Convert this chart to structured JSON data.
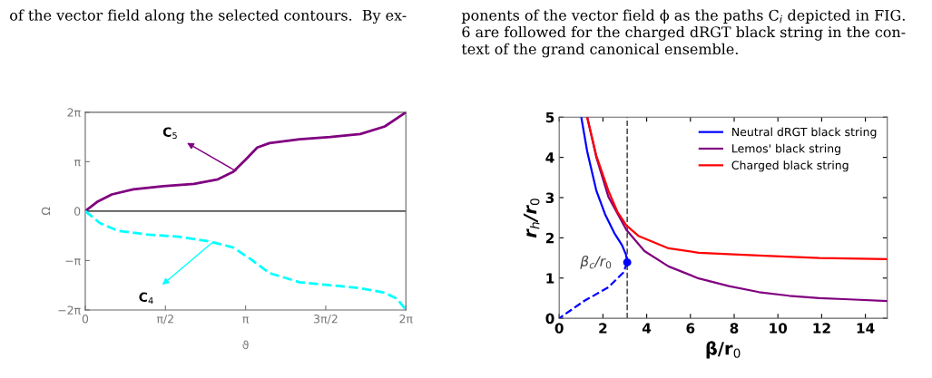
{
  "chart_data": [
    {
      "type": "line",
      "xlabel": "ϑ",
      "ylabel": "Ω",
      "annotations": [
        "of the vector field along the selected contours.  By ex-",
        {
          "text": "C$_{5}$",
          "x": 2.95,
          "y": 2.55
        },
        {
          "text": "C$_{4}$",
          "x": 2.48,
          "y": -2.02
        }
      ],
      "xlim": [
        0,
        6.2832
      ],
      "ylim": [
        -6.2832,
        6.2832
      ],
      "xticks": [
        0,
        {
          "value": 1.5708,
          "label": "π/2"
        },
        {
          "value": 3.1416,
          "label": "π"
        },
        {
          "value": 4.7124,
          "label": "3π/2"
        },
        {
          "value": 6.2832,
          "label": "2π"
        }
      ],
      "yticks": [
        {
          "value": -6.2832,
          "label": "−2π"
        },
        {
          "value": -3.1416,
          "label": "−π"
        },
        0,
        {
          "value": 3.1416,
          "label": "π"
        },
        {
          "value": 6.2832,
          "label": "2π"
        }
      ],
      "ref_lines": [
        {
          "axis": "y",
          "value": 0,
          "color": "#555555",
          "line_style": "solid"
        }
      ],
      "grid": false,
      "legend": false,
      "series": [
        {
          "color": "#800080",
          "line_style": "solid",
          "x": [
            0,
            0.23,
            0.52,
            0.94,
            1.53,
            2.13,
            2.6,
            2.9,
            3.14,
            3.37,
            3.61,
            4.2,
            4.8,
            5.39,
            5.87,
            6.2832
          ],
          "values": [
            0,
            0.58,
            1.06,
            1.38,
            1.58,
            1.73,
            2.02,
            2.5,
            3.27,
            4.04,
            4.32,
            4.57,
            4.71,
            4.9,
            5.38,
            6.28
          ]
        },
        {
          "color": "#00ffff",
          "line_style": "dashed",
          "x": [
            0,
            0.29,
            0.64,
            1.24,
            1.83,
            2.42,
            2.9,
            3.25,
            3.61,
            4.2,
            4.8,
            5.39,
            5.87,
            6.11,
            6.2832
          ],
          "values": [
            0,
            -0.77,
            -1.25,
            -1.5,
            -1.63,
            -1.92,
            -2.31,
            -3.07,
            -3.94,
            -4.52,
            -4.71,
            -4.9,
            -5.19,
            -5.57,
            -6.28
          ]
        }
      ]
    },
    {
      "type": "line",
      "xlabel": "β/r$_{0}$",
      "ylabel": "r$_{h}$/r$_{0}$",
      "annotations": [
        "ponents of the vector field ϕ as the paths C$_{i}$ depicted in FIG.\n6 are followed for the charged dRGT black string in the con-\ntext of the grand canonical ensemble.",
        {
          "text": "β$_{c}$/r$_{0}$",
          "x": 3.11,
          "y": 1.39
        }
      ],
      "xlim": [
        0,
        15
      ],
      "ylim": [
        0,
        5
      ],
      "xticks": [
        0,
        2,
        4,
        6,
        8,
        10,
        12,
        14
      ],
      "yticks": [
        0,
        1,
        2,
        3,
        4,
        5
      ],
      "ref_lines": [
        {
          "axis": "x",
          "value": 3.11,
          "color": "#555555",
          "line_style": "dashed"
        }
      ],
      "grid": false,
      "legend": "top right",
      "series": [
        {
          "name": "Neutral dRGT black string",
          "color": "#0000ff",
          "line_style": "solid",
          "x": [
            1.01,
            1.28,
            1.7,
            2.11,
            2.52,
            2.87,
            3.05,
            3.11
          ],
          "values": [
            5,
            4.15,
            3.17,
            2.57,
            2.12,
            1.82,
            1.59,
            1.39
          ]
        },
        {
          "name": "Lemos' black string",
          "color": "#800080",
          "line_style": "solid",
          "x": [
            1.28,
            1.7,
            2.25,
            3.07,
            3.9,
            5.0,
            6.38,
            7.76,
            9.14,
            10.51,
            11.89,
            13.27,
            15
          ],
          "values": [
            5,
            4.0,
            3.02,
            2.2,
            1.67,
            1.29,
            0.99,
            0.8,
            0.65,
            0.56,
            0.5,
            0.47,
            0.43
          ]
        },
        {
          "name": "Charged black string",
          "color": "#ff0000",
          "line_style": "solid",
          "x": [
            1.28,
            1.7,
            2.25,
            2.66,
            3.07,
            3.62,
            5.0,
            6.38,
            9.14,
            11.89,
            15
          ],
          "values": [
            5,
            4.04,
            3.17,
            2.65,
            2.31,
            2.05,
            1.74,
            1.63,
            1.56,
            1.5,
            1.47
          ]
        },
        {
          "color": "#0000ff",
          "line_style": "dashed",
          "x": [
            3.11,
            2.94,
            2.25,
            1.14,
            0
          ],
          "values": [
            1.39,
            1.14,
            0.77,
            0.43,
            0
          ]
        },
        {
          "type": "scatter",
          "color": "#0000ff",
          "marker": "circle",
          "x": [
            3.11
          ],
          "values": [
            1.39
          ]
        }
      ]
    }
  ]
}
